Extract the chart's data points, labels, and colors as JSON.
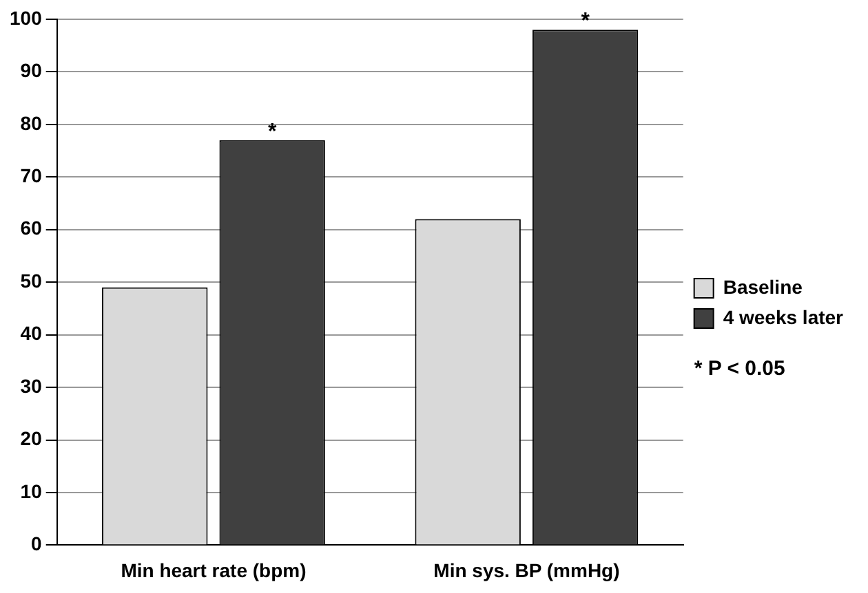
{
  "chart_data": {
    "type": "bar",
    "categories": [
      "Min heart rate (bpm)",
      "Min sys. BP (mmHg)"
    ],
    "series": [
      {
        "name": "Baseline",
        "color": "#d9d9d9",
        "values": [
          49,
          62
        ]
      },
      {
        "name": "4 weeks later",
        "color": "#404040",
        "values": [
          77,
          98
        ]
      }
    ],
    "ylim": [
      0,
      100
    ],
    "yticks": [
      0,
      10,
      20,
      30,
      40,
      50,
      60,
      70,
      80,
      90,
      100
    ],
    "grid": "y",
    "legend": "right",
    "annotations": [
      "*",
      "*",
      "* P < 0.05"
    ]
  }
}
